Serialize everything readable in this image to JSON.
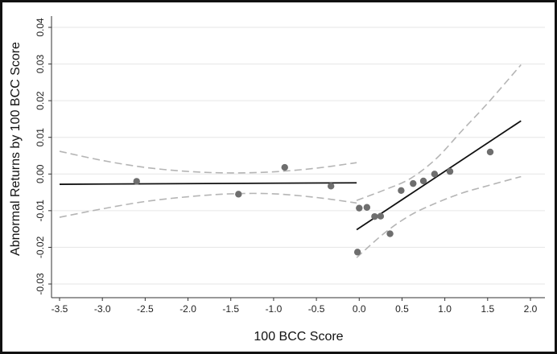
{
  "chart_data": {
    "type": "scatter",
    "xlabel": "100 BCC Score",
    "ylabel": "Abnormal Returns by 100 BCC Score",
    "xlim": [
      -3.5,
      2.0
    ],
    "ylim": [
      -0.03,
      0.04
    ],
    "x_ticks": [
      "-3.5",
      "-3.0",
      "-2.5",
      "-2.0",
      "-1.5",
      "-1.0",
      "-0.5",
      "0.0",
      "0.5",
      "1.0",
      "1.5",
      "2.0"
    ],
    "y_ticks": [
      "-0.03",
      "-0.02",
      "-0.01",
      "0.00",
      "0.01",
      "0.02",
      "0.03",
      "0.04"
    ],
    "grid": true,
    "legend": "none",
    "points": [
      {
        "x": -2.6,
        "y": -0.002
      },
      {
        "x": -1.41,
        "y": -0.0055
      },
      {
        "x": -0.87,
        "y": 0.0018
      },
      {
        "x": -0.33,
        "y": -0.0033
      },
      {
        "x": -0.02,
        "y": -0.0213
      },
      {
        "x": 0.0,
        "y": -0.0093
      },
      {
        "x": 0.09,
        "y": -0.0091
      },
      {
        "x": 0.18,
        "y": -0.0116
      },
      {
        "x": 0.25,
        "y": -0.0115
      },
      {
        "x": 0.36,
        "y": -0.0163
      },
      {
        "x": 0.49,
        "y": -0.0045
      },
      {
        "x": 0.63,
        "y": -0.0026
      },
      {
        "x": 0.75,
        "y": -0.0019
      },
      {
        "x": 0.88,
        "y": 0.0
      },
      {
        "x": 1.06,
        "y": 0.0007
      },
      {
        "x": 1.53,
        "y": 0.006
      }
    ],
    "fit_lines": [
      {
        "segment": "left",
        "x": [
          -3.5,
          -0.03
        ],
        "y": [
          -0.0028,
          -0.0024
        ]
      },
      {
        "segment": "right",
        "x": [
          -0.03,
          1.89
        ],
        "y": [
          -0.0152,
          0.0145
        ]
      }
    ],
    "confidence_bands": [
      {
        "segment": "left",
        "bound": "upper",
        "x": [
          -3.5,
          -3.0,
          -2.5,
          -2.0,
          -1.5,
          -1.0,
          -0.5,
          -0.03
        ],
        "y": [
          0.0062,
          0.0037,
          0.0018,
          0.0007,
          0.0003,
          0.0006,
          0.0016,
          0.0031
        ]
      },
      {
        "segment": "left",
        "bound": "lower",
        "x": [
          -3.5,
          -3.0,
          -2.5,
          -2.0,
          -1.5,
          -1.0,
          -0.5,
          -0.03
        ],
        "y": [
          -0.0118,
          -0.0095,
          -0.0075,
          -0.0062,
          -0.0054,
          -0.0054,
          -0.0064,
          -0.0079
        ]
      },
      {
        "segment": "right",
        "bound": "upper",
        "x": [
          -0.03,
          0.3,
          0.6,
          0.9,
          1.2,
          1.5,
          1.89
        ],
        "y": [
          -0.0072,
          -0.0043,
          -0.0012,
          0.0042,
          0.0118,
          0.0193,
          0.0298
        ]
      },
      {
        "segment": "right",
        "bound": "lower",
        "x": [
          -0.03,
          0.3,
          0.6,
          0.9,
          1.2,
          1.5,
          1.89
        ],
        "y": [
          -0.0228,
          -0.016,
          -0.0112,
          -0.0079,
          -0.0052,
          -0.0032,
          -0.0007
        ]
      }
    ],
    "colors": {
      "points": "#6e6e6e",
      "fit_line": "#111111",
      "confidence_band": "#b5b5b5",
      "grid": "#e6e6e6",
      "axis": "#333333"
    }
  }
}
